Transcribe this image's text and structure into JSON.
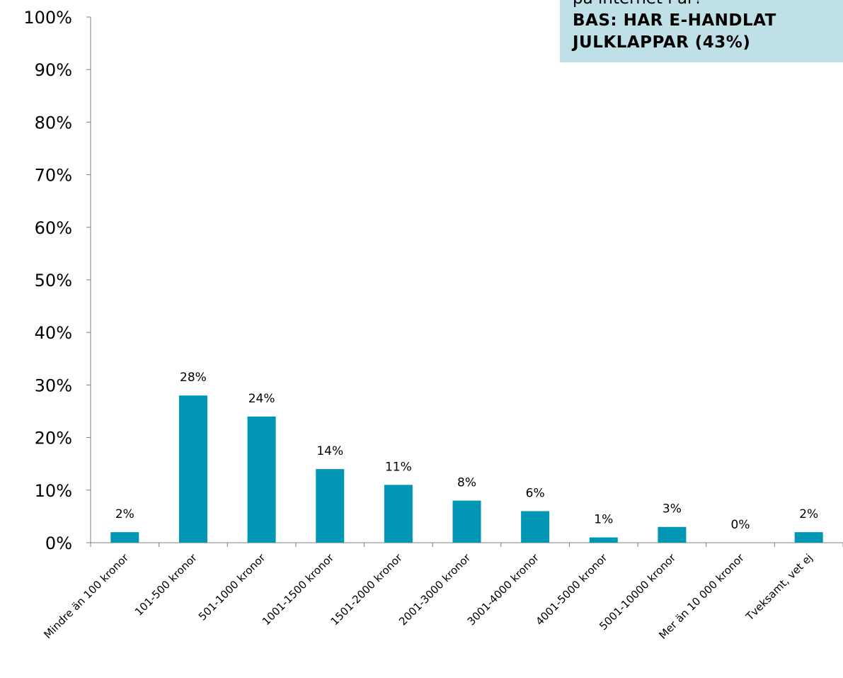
{
  "chart_data": {
    "type": "bar",
    "categories": [
      "Mindre än 100 kronor",
      "101-500 kronor",
      "501-1000 kronor",
      "1001-1500 kronor",
      "1501-2000 kronor",
      "2001-3000 kronor",
      "3001-4000 kronor",
      "4001-5000 kronor",
      "5001-10000 kronor",
      "Mer än 10 000 kronor",
      "Tveksamt, vet ej"
    ],
    "values": [
      2,
      28,
      24,
      14,
      11,
      8,
      6,
      1,
      3,
      0,
      2
    ],
    "data_labels": [
      "2%",
      "28%",
      "24%",
      "14%",
      "11%",
      "8%",
      "6%",
      "1%",
      "3%",
      "0%",
      "2%"
    ],
    "yticks": [
      "0%",
      "10%",
      "20%",
      "30%",
      "40%",
      "50%",
      "60%",
      "70%",
      "80%",
      "90%",
      "100%"
    ],
    "ylim": [
      0,
      100
    ],
    "bar_color": "#0096b4",
    "grid": false,
    "title_lines": [
      "på internet i år?",
      "BAS: HAR E-HANDLAT",
      "JULKLAPPAR (43%)"
    ],
    "title_box_color": "#bfe0e6",
    "title_position": "top-right"
  }
}
